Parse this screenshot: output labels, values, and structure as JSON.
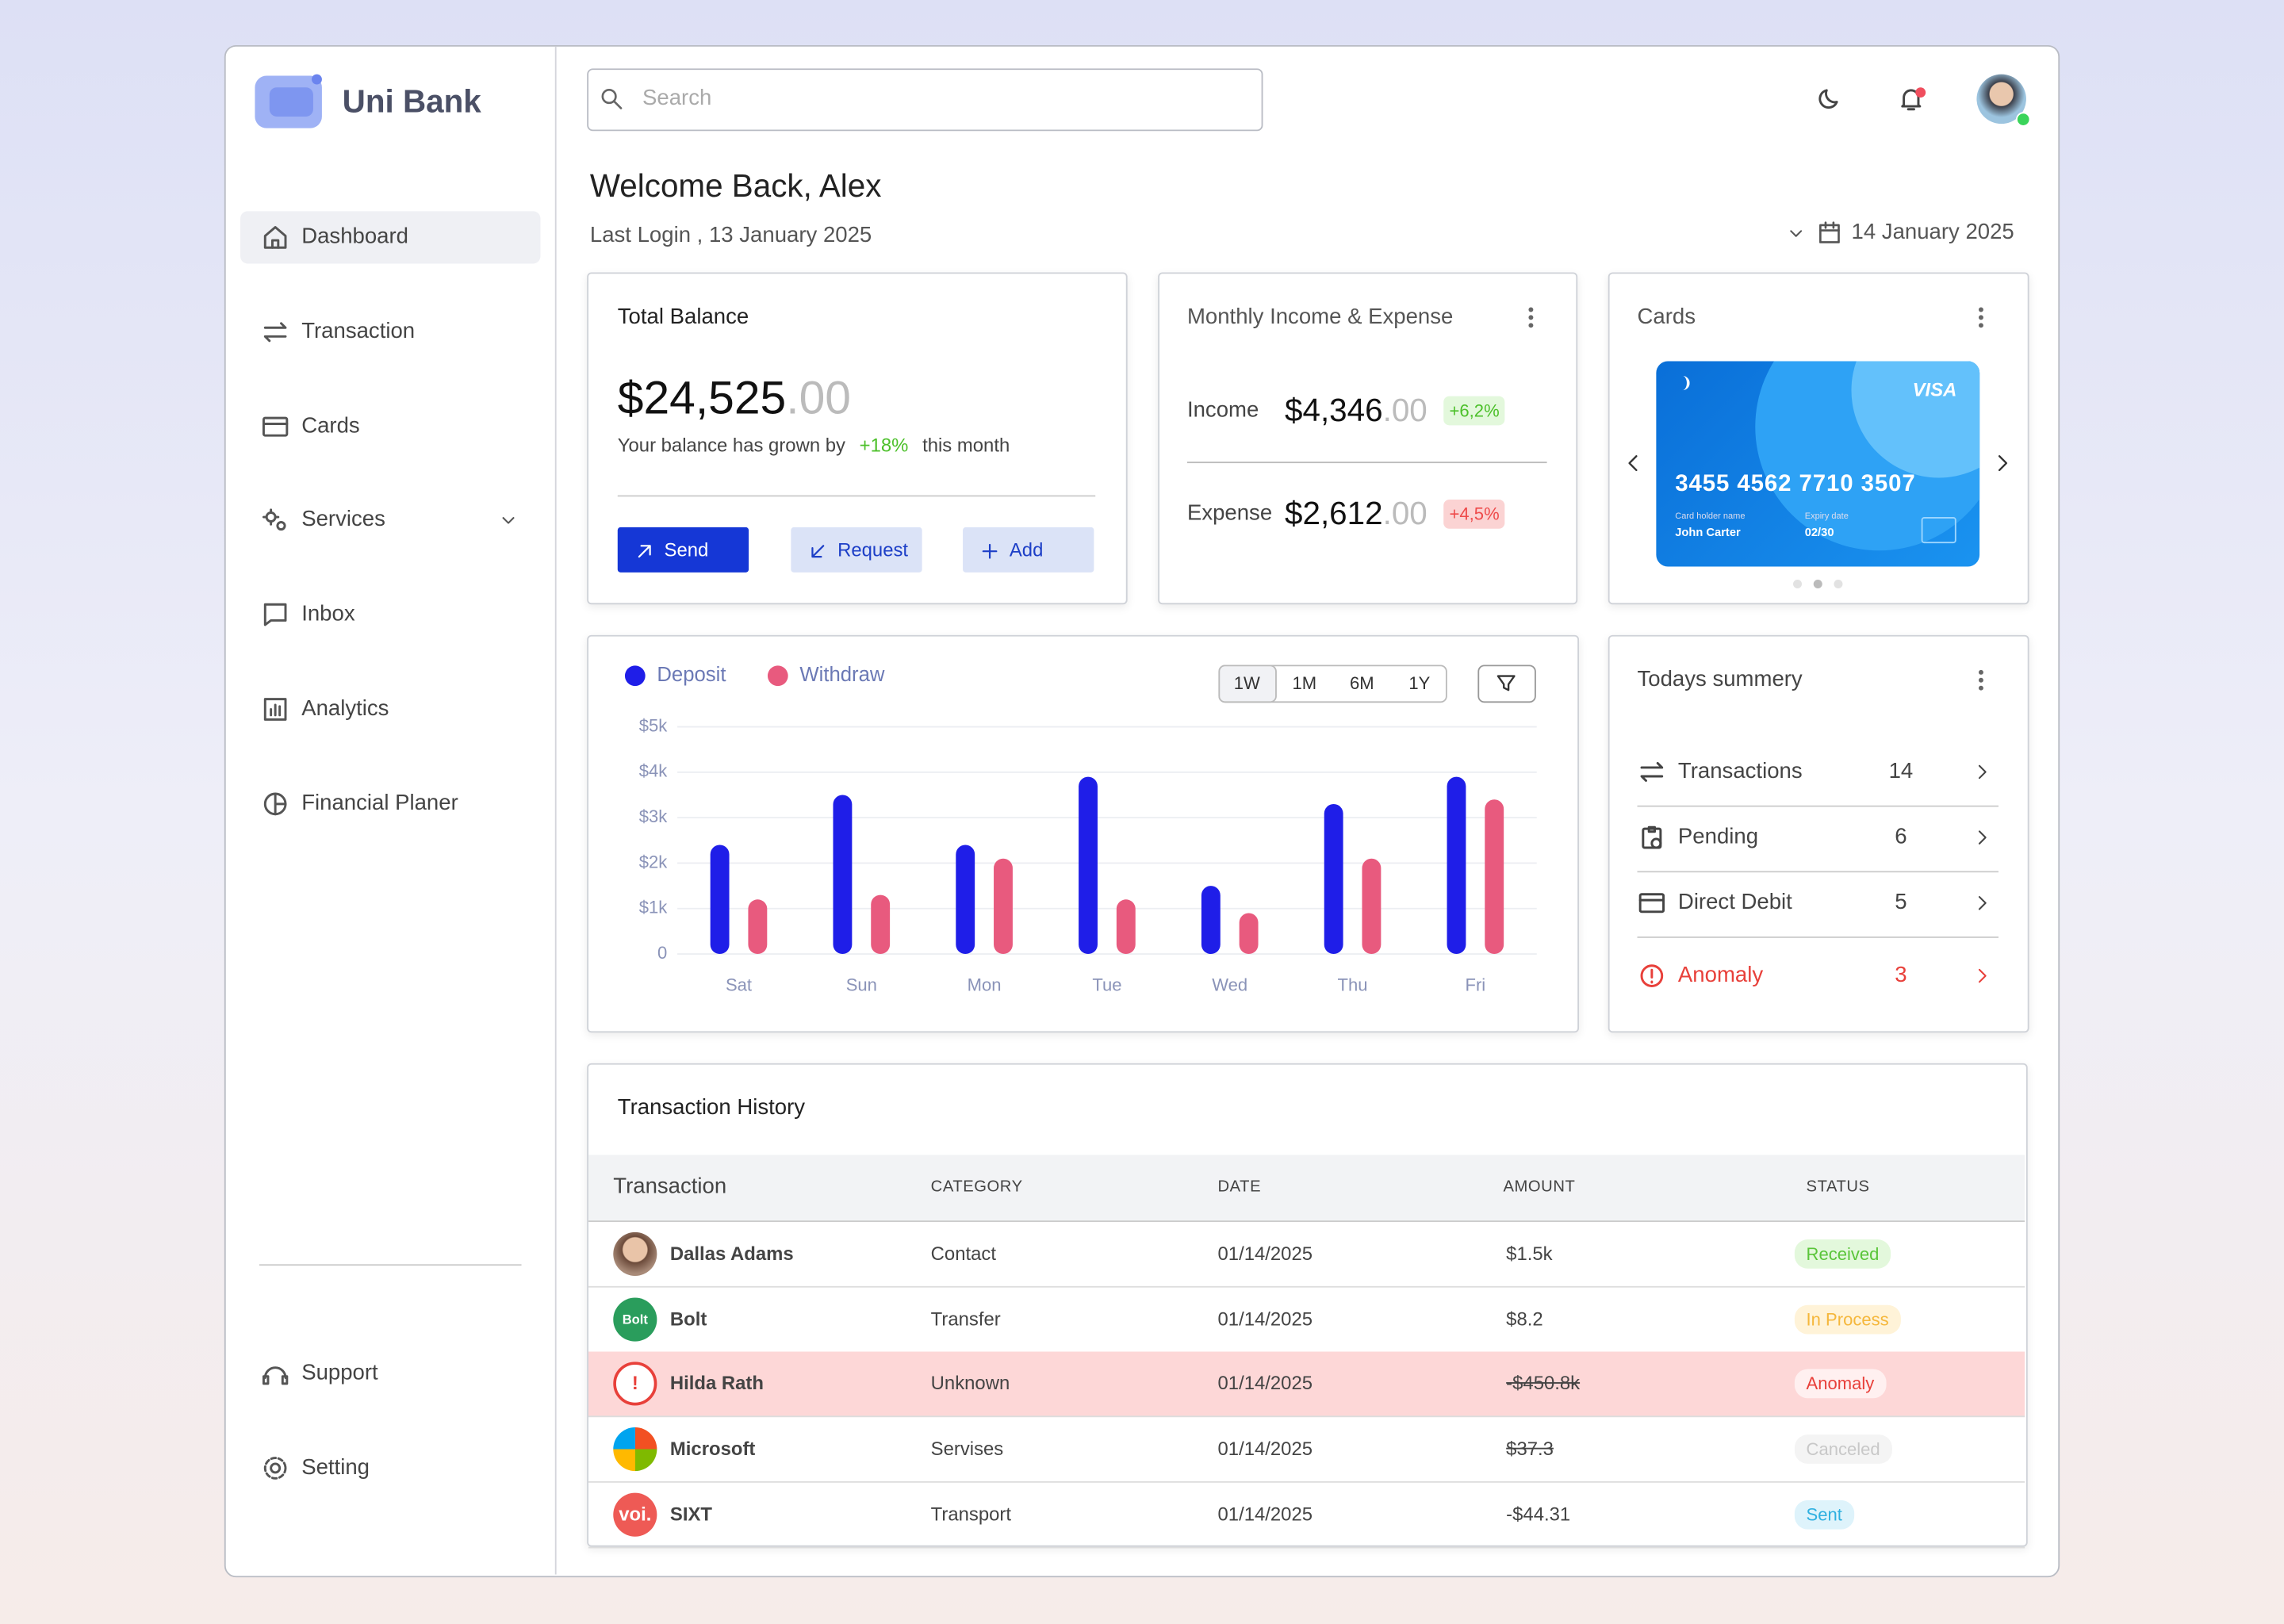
{
  "brand": "Uni Bank",
  "nav": [
    "Dashboard",
    "Transaction",
    "Cards",
    "Services",
    "Inbox",
    "Analytics",
    "Financial Planer"
  ],
  "nav_bottom": [
    "Support",
    "Setting"
  ],
  "search_placeholder": "Search",
  "welcome": "Welcome Back, Alex",
  "last_login": "Last Login , 13 January 2025",
  "date": "14 January 2025",
  "balance": {
    "title": "Total Balance",
    "amount": "$24,525",
    "cents": ".00",
    "growth_text": "Your balance has grown by",
    "growth": "+18%",
    "growth_suffix": "this month",
    "actions": [
      "Send",
      "Request",
      "Add"
    ]
  },
  "income_expense": {
    "title": "Monthly Income & Expense",
    "rows": [
      {
        "label": "Income",
        "amount": "$4,346",
        "cents": ".00",
        "change": "+6,2%"
      },
      {
        "label": "Expense",
        "amount": "$2,612",
        "cents": ".00",
        "change": "+4,5%"
      }
    ]
  },
  "cards": {
    "title": "Cards",
    "brand": "VISA",
    "number": "3455 4562 7710 3507",
    "holder_label": "Card holder name",
    "holder": "John Carter",
    "expiry_label": "Expiry date",
    "expiry": "02/30"
  },
  "chart_data": {
    "type": "bar",
    "categories": [
      "Sat",
      "Sun",
      "Mon",
      "Tue",
      "Wed",
      "Thu",
      "Fri"
    ],
    "series": [
      {
        "name": "Deposit",
        "color": "#1f1ee8",
        "values": [
          2400,
          3500,
          2400,
          3900,
          1500,
          3300,
          3900
        ]
      },
      {
        "name": "Withdraw",
        "color": "#e85a7e",
        "values": [
          1200,
          1300,
          2100,
          1200,
          900,
          2100,
          3400
        ]
      }
    ],
    "ylim": [
      0,
      5000
    ],
    "yticks": [
      0,
      {
        "value": 1000,
        "label": "$1k"
      },
      {
        "value": 2000,
        "label": "$2k"
      },
      {
        "value": 3000,
        "label": "$3k"
      },
      {
        "value": 4000,
        "label": "$4k"
      },
      {
        "value": 5000,
        "label": "$5k"
      }
    ],
    "grid": true,
    "legend": "top-left"
  },
  "chart_controls": {
    "ranges": [
      "1W",
      "1M",
      "6M",
      "1Y"
    ]
  },
  "summary": {
    "title": "Todays summery",
    "rows": [
      {
        "label": "Transactions",
        "count": 14
      },
      {
        "label": "Pending",
        "count": 6
      },
      {
        "label": "Direct Debit",
        "count": 5
      },
      {
        "label": "Anomaly",
        "count": 3
      }
    ]
  },
  "history": {
    "title": "Transaction History",
    "columns": [
      "Transaction",
      "CATEGORY",
      "DATE",
      "AMOUNT",
      "STATUS"
    ],
    "rows": [
      {
        "name": "Dallas Adams",
        "category": "Contact",
        "date": "01/14/2025",
        "amount": "$1.5k",
        "status": "Received"
      },
      {
        "name": "Bolt",
        "logo": "Bolt",
        "category": "Transfer",
        "date": "01/14/2025",
        "amount": "$8.2",
        "status": "In Process"
      },
      {
        "name": "Hilda Rath",
        "category": "Unknown",
        "date": "01/14/2025",
        "amount": "-$450.8k",
        "status": "Anomaly"
      },
      {
        "name": "Microsoft",
        "category": "Servises",
        "date": "01/14/2025",
        "amount": "$37.3",
        "status": "Canceled"
      },
      {
        "name": "SIXT",
        "logo": "voi.",
        "category": "Transport",
        "date": "01/14/2025",
        "amount": "-$44.31",
        "status": "Sent"
      }
    ]
  }
}
